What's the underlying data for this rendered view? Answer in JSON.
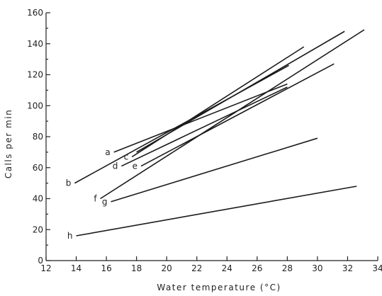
{
  "chart_data": {
    "type": "line",
    "title": "",
    "xlabel": "Water temperature  (°C)",
    "ylabel": "Calls per min",
    "xlim": [
      12,
      34
    ],
    "ylim": [
      0,
      160
    ],
    "x_ticks": [
      12,
      14,
      16,
      18,
      20,
      22,
      24,
      26,
      28,
      30,
      32,
      34
    ],
    "y_ticks": [
      0,
      20,
      40,
      60,
      80,
      100,
      120,
      140,
      160
    ],
    "grid": false,
    "legend": "none",
    "series": [
      {
        "name": "a",
        "x": [
          16.5,
          28.0
        ],
        "y": [
          70,
          114
        ]
      },
      {
        "name": "b",
        "x": [
          13.9,
          28.1
        ],
        "y": [
          50,
          126
        ]
      },
      {
        "name": "c",
        "x": [
          17.7,
          29.1
        ],
        "y": [
          67,
          138
        ]
      },
      {
        "name": "d",
        "x": [
          17.0,
          28.0
        ],
        "y": [
          61,
          112
        ]
      },
      {
        "name": "e",
        "x": [
          18.3,
          31.1
        ],
        "y": [
          61,
          127
        ]
      },
      {
        "name": "f",
        "x": [
          15.6,
          33.1
        ],
        "y": [
          40,
          149
        ]
      },
      {
        "name": "g",
        "x": [
          16.3,
          30.0
        ],
        "y": [
          38,
          79
        ]
      },
      {
        "name": "h",
        "x": [
          14.0,
          32.6
        ],
        "y": [
          16,
          48
        ]
      },
      {
        "name": "",
        "x": [
          18.0,
          31.8
        ],
        "y": [
          70,
          148
        ]
      }
    ]
  }
}
